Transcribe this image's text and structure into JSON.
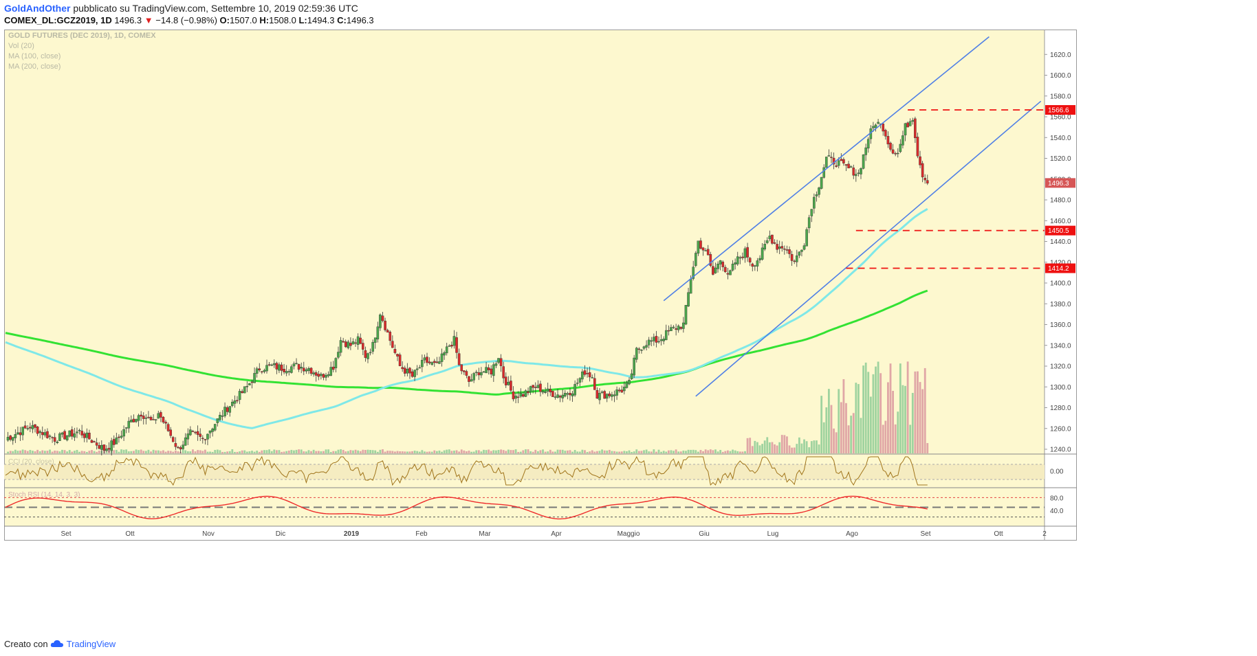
{
  "header": {
    "author": "GoldAndOther",
    "published_text": "pubblicato su TradingView.com, Settembre 10, 2019 02:59:36 UTC",
    "symbol": "COMEX_DL:GCZ2019, 1D",
    "last": "1496.3",
    "change_arrow": "▼",
    "change": "−14.8 (−0.98%)",
    "o_label": "O:",
    "o_value": "1507.0",
    "h_label": "H:",
    "h_value": "1508.0",
    "l_label": "L:",
    "l_value": "1494.3",
    "c_label": "C:",
    "c_value": "1496.3"
  },
  "legend": {
    "title": "GOLD FUTURES (DEC 2019), 1D, COMEX",
    "vol": "Vol (20)",
    "ma100": "MA (100, close)",
    "ma200": "MA (200, close)",
    "cci": "CCI (20, close)",
    "stoch": "Stoch RSI (14, 14, 3, 3)"
  },
  "footer": {
    "prefix": "Creato con",
    "brand": "TradingView"
  },
  "colors": {
    "panel_bg": "#fdf8cf",
    "up": "#4ca64c",
    "down": "#d92b2b",
    "ma100": "#7fe8e8",
    "ma200": "#33e233",
    "channel": "#4f7fe6",
    "level": "#ee1111",
    "cci": "#a0741a",
    "stoch": "#ee2b2b"
  },
  "chart_data": {
    "type": "candlestick",
    "title": "GOLD FUTURES (DEC 2019), 1D, COMEX",
    "ylim": [
      1240,
      1640
    ],
    "y_ticks": [
      "1620.0",
      "1600.0",
      "1580.0",
      "1560.0",
      "1540.0",
      "1520.0",
      "1500.0",
      "1480.0",
      "1460.0",
      "1440.0",
      "1420.0",
      "1400.0",
      "1380.0",
      "1360.0",
      "1340.0",
      "1320.0",
      "1300.0",
      "1280.0",
      "1260.0",
      "1240.0"
    ],
    "x_labels": [
      "Set",
      "Ott",
      "Nov",
      "Dic",
      "2019",
      "Feb",
      "Mar",
      "Apr",
      "Maggio",
      "Giu",
      "Lug",
      "Ago",
      "Set",
      "Ott",
      "2"
    ],
    "price_labels": [
      {
        "text": "1566.6",
        "value": 1566.6,
        "kind": "level"
      },
      {
        "text": "1496.3",
        "value": 1496.3,
        "kind": "last"
      },
      {
        "text": "1450.5",
        "value": 1450.5,
        "kind": "level"
      },
      {
        "text": "1414.2",
        "value": 1414.2,
        "kind": "level"
      }
    ],
    "horizontal_levels": [
      1566.6,
      1450.5,
      1414.2
    ],
    "cci_ticks": [
      "0.00"
    ],
    "stoch_ticks": [
      "80.0",
      "40.0"
    ],
    "key_points": [
      [
        0,
        1250
      ],
      [
        10,
        1262
      ],
      [
        20,
        1250
      ],
      [
        30,
        1257
      ],
      [
        40,
        1240
      ],
      [
        45,
        1248
      ],
      [
        50,
        1265
      ],
      [
        55,
        1275
      ],
      [
        60,
        1265
      ],
      [
        62,
        1275
      ],
      [
        66,
        1258
      ],
      [
        70,
        1240
      ],
      [
        75,
        1255
      ],
      [
        80,
        1250
      ],
      [
        85,
        1265
      ],
      [
        90,
        1280
      ],
      [
        95,
        1292
      ],
      [
        98,
        1300
      ],
      [
        103,
        1318
      ],
      [
        108,
        1320
      ],
      [
        113,
        1318
      ],
      [
        118,
        1320
      ],
      [
        123,
        1318
      ],
      [
        128,
        1310
      ],
      [
        133,
        1320
      ],
      [
        136,
        1345
      ],
      [
        140,
        1340
      ],
      [
        143,
        1345
      ],
      [
        146,
        1330
      ],
      [
        149,
        1340
      ],
      [
        152,
        1372
      ],
      [
        156,
        1345
      ],
      [
        160,
        1320
      ],
      [
        165,
        1310
      ],
      [
        170,
        1325
      ],
      [
        175,
        1320
      ],
      [
        180,
        1340
      ],
      [
        182,
        1345
      ],
      [
        184,
        1320
      ],
      [
        188,
        1305
      ],
      [
        192,
        1315
      ],
      [
        197,
        1315
      ],
      [
        200,
        1330
      ],
      [
        202,
        1310
      ],
      [
        206,
        1292
      ],
      [
        210,
        1293
      ],
      [
        215,
        1300
      ],
      [
        220,
        1295
      ],
      [
        225,
        1292
      ],
      [
        230,
        1297
      ],
      [
        235,
        1315
      ],
      [
        238,
        1310
      ],
      [
        240,
        1292
      ],
      [
        245,
        1293
      ],
      [
        250,
        1297
      ],
      [
        253,
        1303
      ],
      [
        256,
        1335
      ],
      [
        260,
        1343
      ],
      [
        265,
        1345
      ],
      [
        270,
        1355
      ],
      [
        275,
        1360
      ],
      [
        278,
        1405
      ],
      [
        281,
        1440
      ],
      [
        285,
        1425
      ],
      [
        287,
        1408
      ],
      [
        290,
        1425
      ],
      [
        293,
        1405
      ],
      [
        296,
        1420
      ],
      [
        300,
        1430
      ],
      [
        303,
        1418
      ],
      [
        306,
        1425
      ],
      [
        310,
        1445
      ],
      [
        313,
        1435
      ],
      [
        316,
        1435
      ],
      [
        320,
        1420
      ],
      [
        324,
        1440
      ],
      [
        327,
        1475
      ],
      [
        330,
        1495
      ],
      [
        333,
        1520
      ],
      [
        338,
        1515
      ],
      [
        342,
        1510
      ],
      [
        346,
        1505
      ],
      [
        350,
        1540
      ],
      [
        353,
        1555
      ],
      [
        356,
        1550
      ],
      [
        359,
        1530
      ],
      [
        362,
        1525
      ],
      [
        365,
        1550
      ],
      [
        368,
        1560
      ],
      [
        370,
        1525
      ],
      [
        372,
        1505
      ],
      [
        374,
        1496
      ]
    ]
  }
}
